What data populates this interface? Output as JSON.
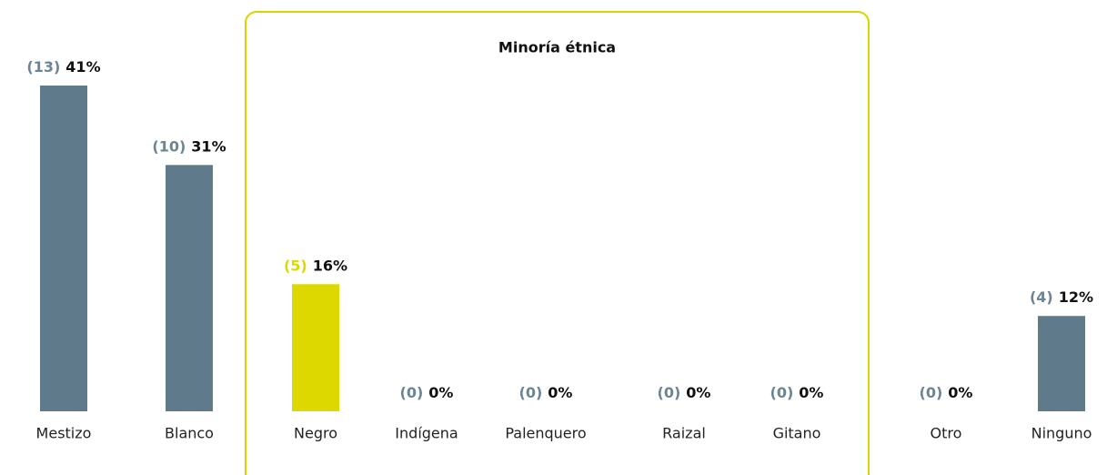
{
  "chart_data": {
    "type": "bar",
    "categories": [
      "Mestizo",
      "Blanco",
      "Negro",
      "Indígena",
      "Palenquero",
      "Raizal",
      "Gitano",
      "Otro",
      "Ninguno"
    ],
    "values": [
      41,
      31,
      16,
      0,
      0,
      0,
      0,
      0,
      12
    ],
    "value_labels": [
      "41%",
      "31%",
      "16%",
      "0%",
      "0%",
      "0%",
      "0%",
      "0%",
      "12%"
    ],
    "counts": [
      13,
      10,
      5,
      0,
      0,
      0,
      0,
      0,
      4
    ],
    "count_labels": [
      "(13)",
      "(10)",
      "(5)",
      "(0)",
      "(0)",
      "(0)",
      "(0)",
      "(0)",
      "(4)"
    ],
    "colors": [
      "#5f7a8a",
      "#5f7a8a",
      "#dcd800",
      "#5f7a8a",
      "#5f7a8a",
      "#5f7a8a",
      "#5f7a8a",
      "#5f7a8a",
      "#5f7a8a"
    ],
    "groups": [
      {
        "label": "Minoría étnica",
        "categories": [
          "Negro",
          "Indígena",
          "Palenquero",
          "Raizal",
          "Gitano"
        ],
        "color": "#d8d400"
      }
    ]
  }
}
